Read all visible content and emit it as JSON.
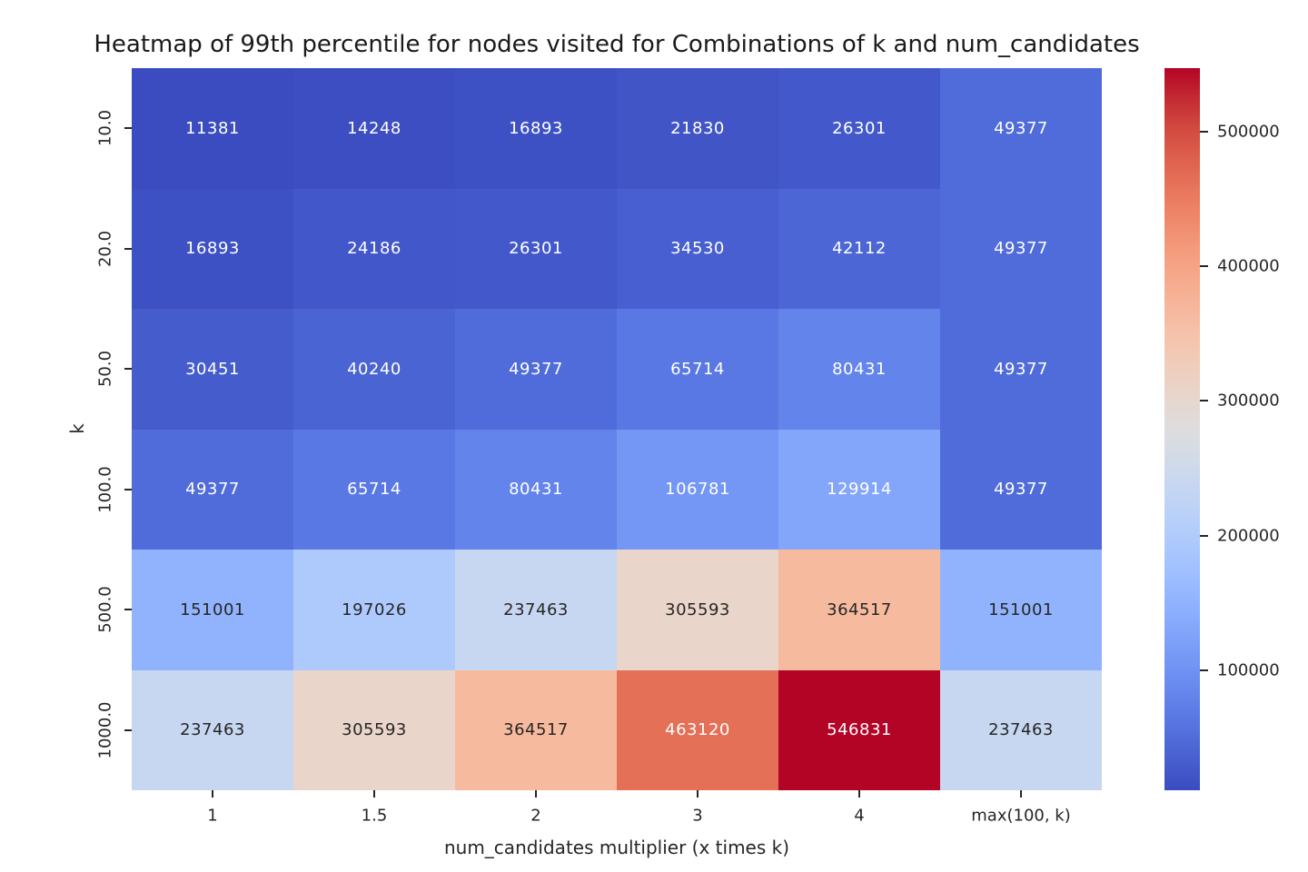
{
  "chart_data": {
    "type": "heatmap",
    "title": "Heatmap of 99th percentile for nodes visited for Combinations of k and num_candidates",
    "xlabel": "num_candidates multiplier (x times k)",
    "ylabel": "k",
    "x_categories": [
      "1",
      "1.5",
      "2",
      "3",
      "4",
      "max(100, k)"
    ],
    "y_categories": [
      "10.0",
      "20.0",
      "50.0",
      "100.0",
      "500.0",
      "1000.0"
    ],
    "values": [
      [
        11381,
        14248,
        16893,
        21830,
        26301,
        49377
      ],
      [
        16893,
        24186,
        26301,
        34530,
        42112,
        49377
      ],
      [
        30451,
        40240,
        49377,
        65714,
        80431,
        49377
      ],
      [
        49377,
        65714,
        80431,
        106781,
        129914,
        49377
      ],
      [
        151001,
        197026,
        237463,
        305593,
        364517,
        151001
      ],
      [
        237463,
        305593,
        364517,
        463120,
        546831,
        237463
      ]
    ],
    "vmin": 11381,
    "vmax": 546831,
    "colormap": "coolwarm",
    "colorbar_ticks": [
      "100000",
      "200000",
      "300000",
      "400000",
      "500000"
    ],
    "colorbar_tick_values": [
      100000,
      200000,
      300000,
      400000,
      500000
    ],
    "annotations": true,
    "grid": false,
    "legend_position": "right colorbar"
  },
  "colors": {
    "background": "#ffffff",
    "text": "#262626",
    "annotation_dark": "#262626",
    "annotation_light": "#ffffff",
    "coolwarm_min": "#3b4cc0",
    "coolwarm_mid": "#dddddd",
    "coolwarm_max": "#b40426"
  }
}
